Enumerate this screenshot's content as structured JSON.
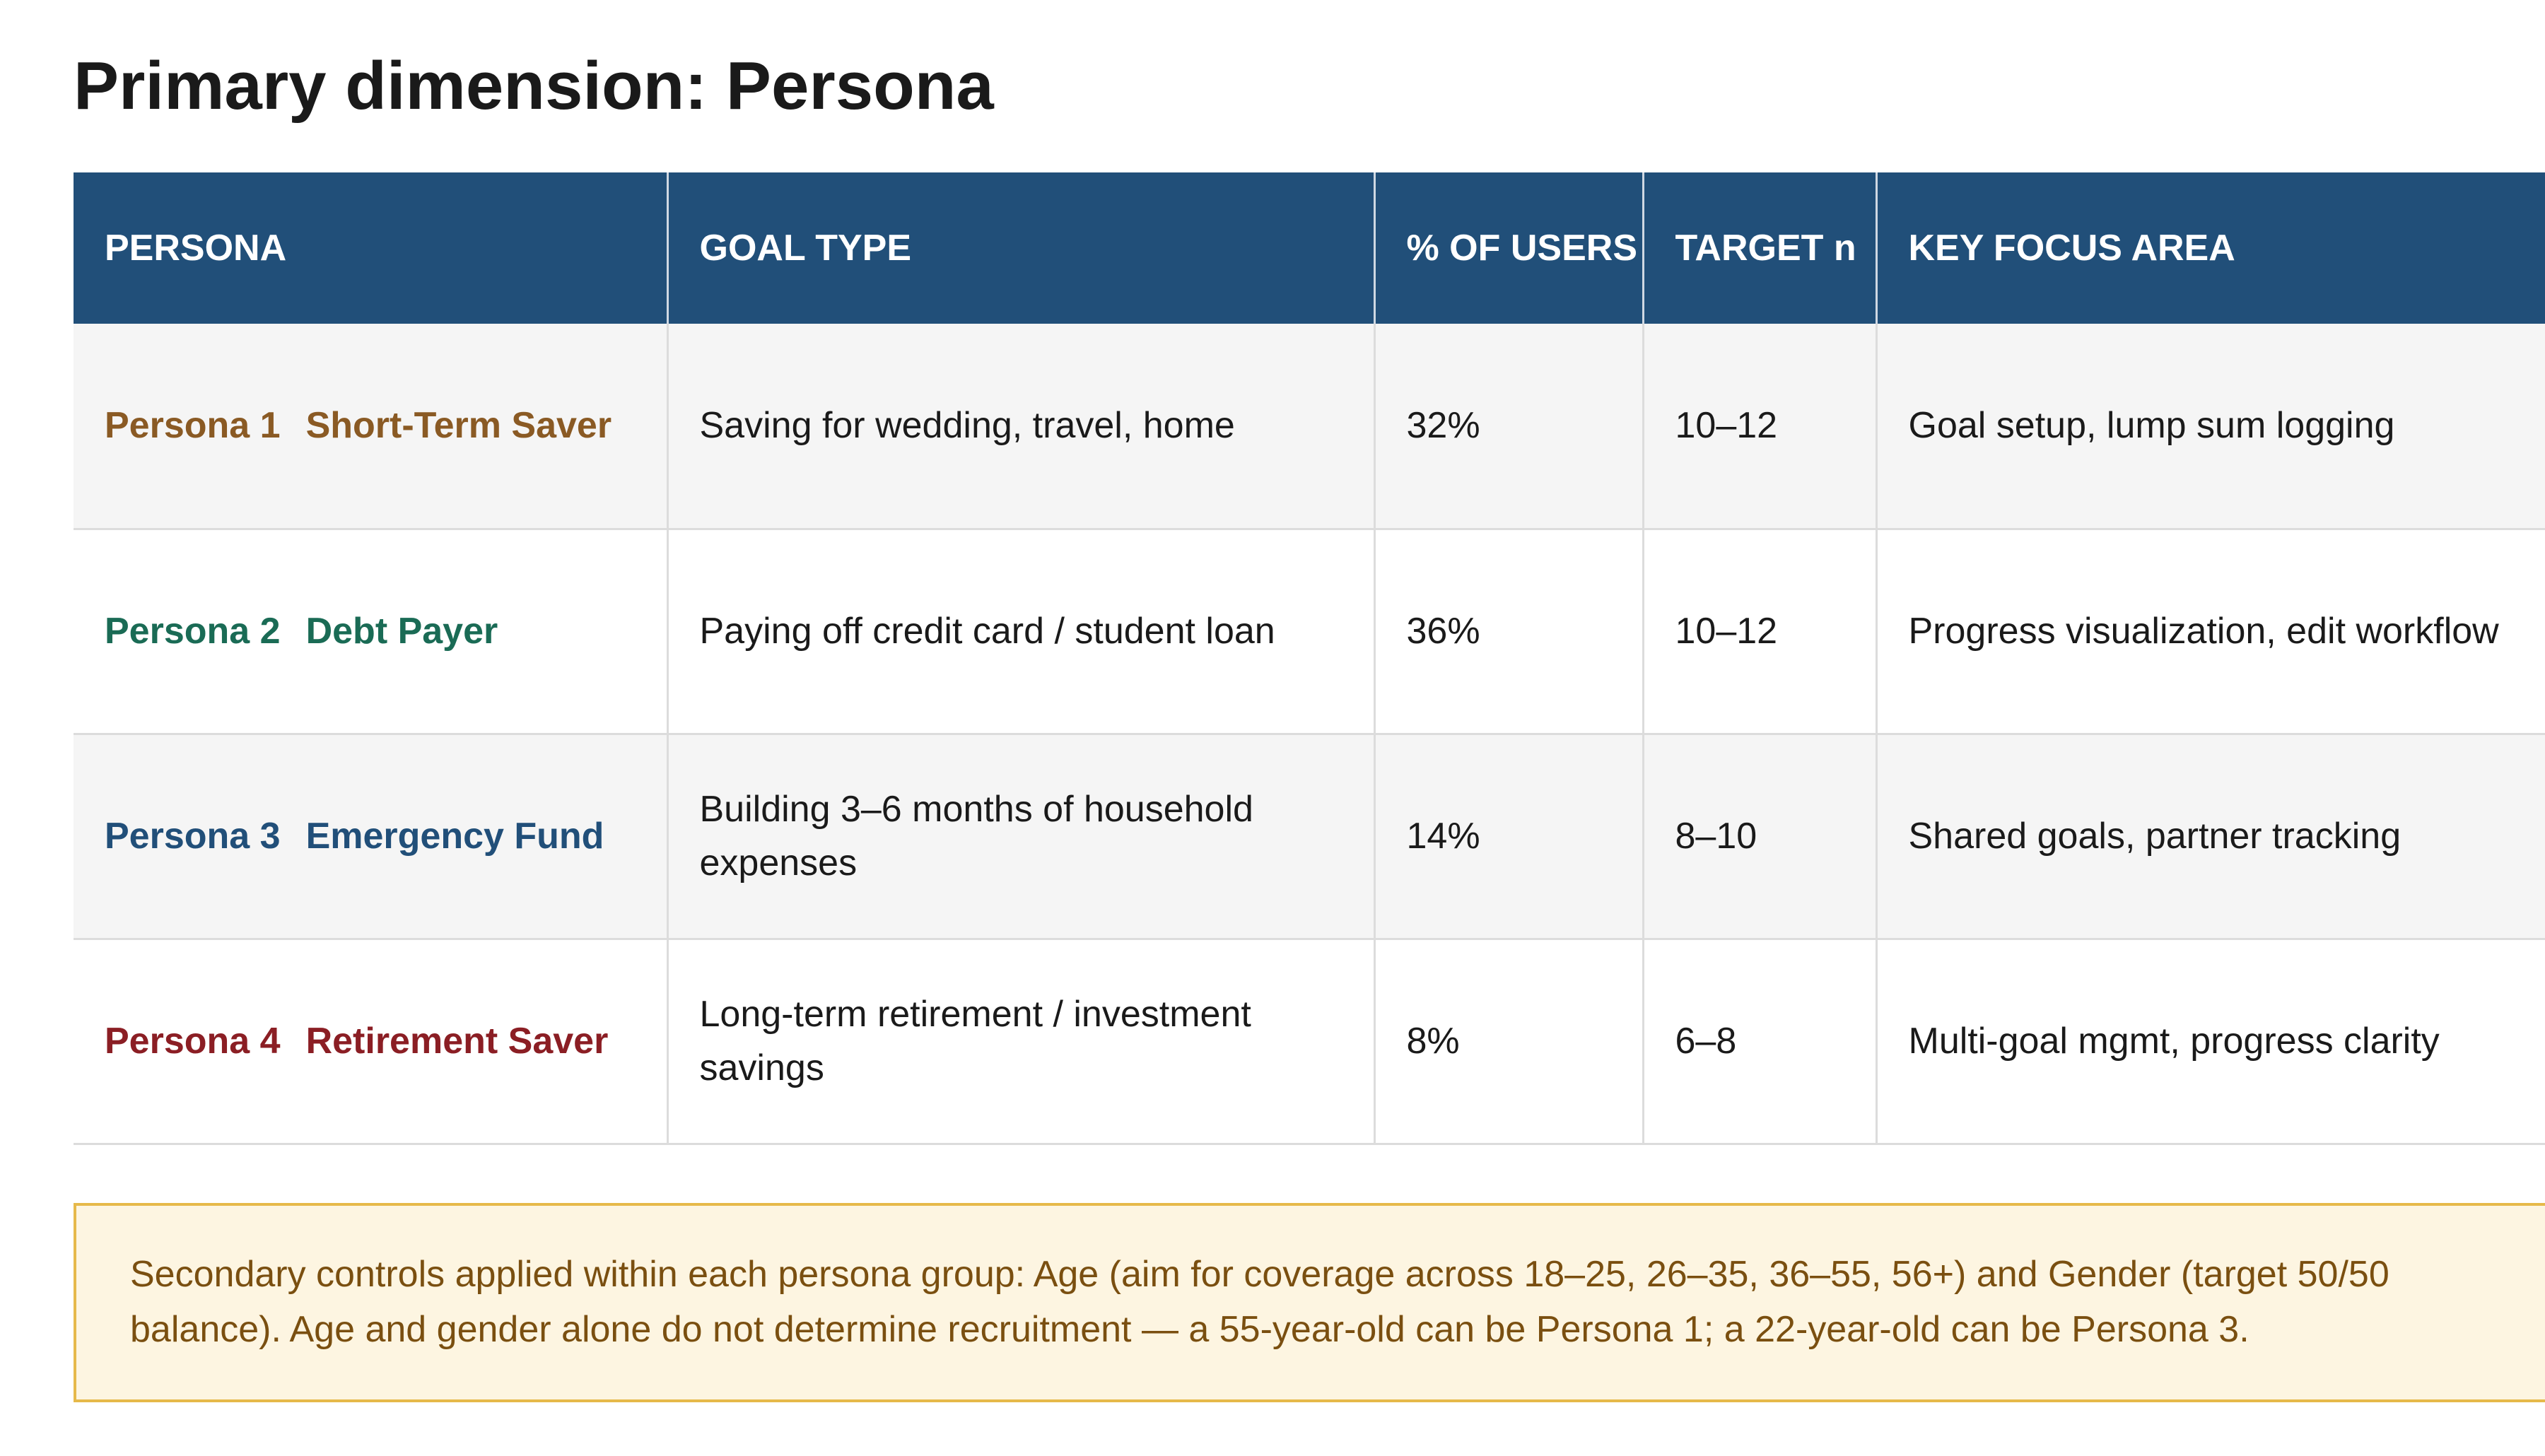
{
  "title": "Primary dimension: Persona",
  "table": {
    "headers": [
      "PERSONA",
      "GOAL TYPE",
      "% OF USERS",
      "TARGET n",
      "KEY FOCUS AREA"
    ],
    "rows": [
      {
        "persona_num": "Persona 1",
        "persona_name": "Short-Term Saver",
        "color": "#8a5a24",
        "goal_type": "Saving for wedding, travel, home",
        "pct_users": "32%",
        "target_n": "10–12",
        "focus": "Goal setup, lump sum logging"
      },
      {
        "persona_num": "Persona 2",
        "persona_name": "Debt Payer",
        "color": "#1a6b55",
        "goal_type": "Paying off credit card / student loan",
        "pct_users": "36%",
        "target_n": "10–12",
        "focus": "Progress visualization, edit workflow"
      },
      {
        "persona_num": "Persona 3",
        "persona_name": "Emergency Fund",
        "color": "#214f79",
        "goal_type": "Building 3–6 months of household expenses",
        "pct_users": "14%",
        "target_n": "8–10",
        "focus": "Shared goals, partner tracking"
      },
      {
        "persona_num": "Persona 4",
        "persona_name": "Retirement Saver",
        "color": "#8b1e24",
        "goal_type": "Long-term retirement / investment savings",
        "pct_users": "8%",
        "target_n": "6–8",
        "focus": "Multi-goal mgmt, progress clarity"
      }
    ]
  },
  "callout": {
    "text": "Secondary controls applied within each persona group: Age (aim for coverage across 18–25, 26–35, 36–55, 56+) and Gender (target 50/50 balance). Age and gender alone do not determine recruitment — a 55-year-old can be Persona 1; a 22-year-old can be Persona 3."
  },
  "colors": {
    "header_bg": "#214f79",
    "callout_bg": "#fdf5e1",
    "callout_border": "#e6b94a",
    "callout_text": "#7a4f10"
  }
}
